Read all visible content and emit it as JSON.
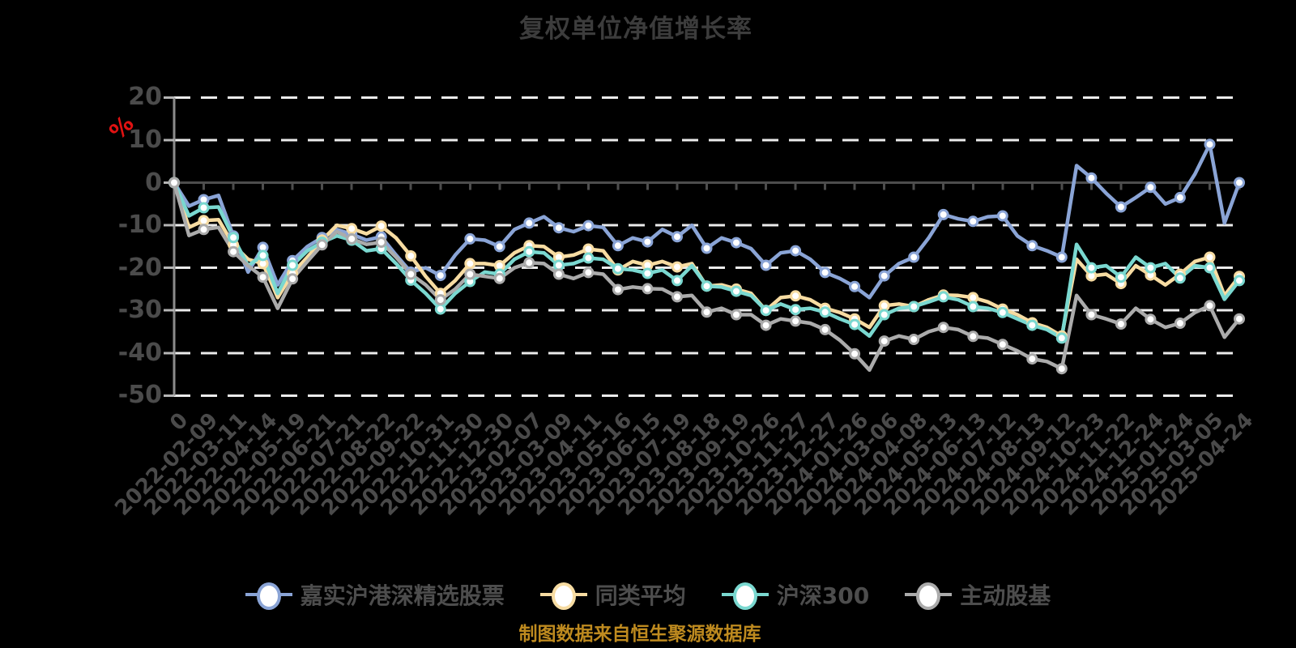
{
  "page": {
    "background": "#000000"
  },
  "chart_data": {
    "type": "line",
    "title": "复权单位净值增长率",
    "ylabel": "%",
    "source_note": "制图数据来自恒生聚源数据库",
    "ylim": [
      -50,
      20
    ],
    "yticks": [
      20,
      10,
      0,
      -10,
      -20,
      -30,
      -40,
      -50
    ],
    "grid": "horizontal-dashed",
    "legend_position": "bottom",
    "x_resolution": "values sampled at each category and at midpoints between categories",
    "categories": [
      "0",
      "2022-02-09",
      "2022-03-11",
      "2022-04-14",
      "2022-05-19",
      "2022-06-21",
      "2022-07-21",
      "2022-08-22",
      "2022-09-22",
      "2022-10-31",
      "2022-11-30",
      "2022-12-30",
      "2023-02-07",
      "2023-03-09",
      "2023-04-11",
      "2023-05-16",
      "2023-06-15",
      "2023-07-19",
      "2023-08-18",
      "2023-09-19",
      "2023-10-26",
      "2023-11-27",
      "2023-12-27",
      "2024-01-26",
      "2024-03-06",
      "2024-04-08",
      "2024-05-13",
      "2024-06-13",
      "2024-07-12",
      "2024-08-13",
      "2024-09-12",
      "2024-10-23",
      "2024-11-22",
      "2024-12-24",
      "2025-01-24",
      "2025-03-05",
      "2025-04-24"
    ],
    "series": [
      {
        "name": "嘉实沪港深精选股票",
        "color": "#8aa4d6",
        "values": [
          0,
          -5.5,
          -4.0,
          -3.0,
          -12.5,
          -21.0,
          -15.2,
          -24.0,
          -18.3,
          -15.0,
          -12.9,
          -11.0,
          -12.1,
          -13.5,
          -12.7,
          -17.0,
          -21.0,
          -20.0,
          -21.8,
          -17.0,
          -13.2,
          -13.5,
          -15.0,
          -11.0,
          -9.5,
          -8.0,
          -10.6,
          -11.5,
          -10.1,
          -10.5,
          -14.8,
          -13.0,
          -13.9,
          -11.0,
          -12.7,
          -10.0,
          -15.4,
          -13.0,
          -14.1,
          -15.5,
          -19.4,
          -16.5,
          -16.0,
          -18.0,
          -21.1,
          -22.5,
          -24.4,
          -27.0,
          -21.9,
          -19.0,
          -17.5,
          -13.0,
          -7.5,
          -8.5,
          -9.1,
          -8.0,
          -7.8,
          -12.5,
          -14.8,
          -16.0,
          -17.5,
          4.0,
          1.1,
          -2.5,
          -5.7,
          -3.5,
          -1.1,
          -5.0,
          -3.5,
          2.0,
          9.0,
          -9.5,
          0.0
        ]
      },
      {
        "name": "同类平均",
        "color": "#f7dca2",
        "values": [
          0,
          -10.5,
          -8.9,
          -8.7,
          -14.6,
          -18.0,
          -19.0,
          -27.0,
          -21.3,
          -17.5,
          -13.5,
          -10.0,
          -10.8,
          -12.0,
          -10.2,
          -13.0,
          -17.2,
          -22.0,
          -26.0,
          -23.0,
          -19.0,
          -19.0,
          -19.5,
          -16.5,
          -14.8,
          -15.0,
          -17.5,
          -17.0,
          -15.6,
          -16.0,
          -20.5,
          -18.5,
          -19.4,
          -18.5,
          -19.8,
          -19.0,
          -24.3,
          -24.0,
          -25.0,
          -26.0,
          -30.0,
          -27.0,
          -26.6,
          -27.5,
          -29.5,
          -30.5,
          -32.0,
          -34.0,
          -28.9,
          -28.5,
          -29.1,
          -27.5,
          -26.4,
          -26.5,
          -27.0,
          -28.0,
          -29.7,
          -31.0,
          -32.9,
          -34.0,
          -36.0,
          -18.0,
          -21.9,
          -21.5,
          -23.7,
          -19.5,
          -21.7,
          -24.0,
          -21.5,
          -18.5,
          -17.5,
          -26.5,
          -22.0
        ]
      },
      {
        "name": "沪深300",
        "color": "#7ad8d0",
        "values": [
          0,
          -7.8,
          -5.9,
          -5.7,
          -12.9,
          -19.5,
          -17.1,
          -26.0,
          -19.4,
          -16.0,
          -14.0,
          -12.5,
          -13.5,
          -16.0,
          -15.5,
          -19.0,
          -22.9,
          -26.0,
          -29.7,
          -26.0,
          -23.2,
          -21.0,
          -21.5,
          -18.0,
          -16.2,
          -16.5,
          -19.4,
          -19.0,
          -17.7,
          -18.0,
          -20.2,
          -20.5,
          -21.3,
          -20.5,
          -23.0,
          -19.5,
          -24.3,
          -24.5,
          -25.5,
          -26.5,
          -30.0,
          -28.5,
          -29.8,
          -29.5,
          -30.4,
          -32.0,
          -33.3,
          -36.0,
          -31.0,
          -29.5,
          -29.1,
          -28.0,
          -26.8,
          -27.5,
          -29.1,
          -29.5,
          -30.5,
          -32.0,
          -33.5,
          -34.5,
          -36.5,
          -14.5,
          -20.0,
          -19.5,
          -22.2,
          -17.5,
          -20.0,
          -19.0,
          -22.4,
          -19.5,
          -20.0,
          -27.4,
          -23.0
        ]
      },
      {
        "name": "主动股基",
        "color": "#ababab",
        "values": [
          0,
          -12.4,
          -11.0,
          -10.5,
          -16.2,
          -19.5,
          -22.2,
          -29.5,
          -22.6,
          -18.5,
          -14.6,
          -11.5,
          -13.2,
          -14.5,
          -14.0,
          -17.5,
          -21.5,
          -24.0,
          -27.5,
          -25.0,
          -21.5,
          -22.0,
          -22.5,
          -20.0,
          -18.8,
          -19.0,
          -21.5,
          -22.5,
          -21.1,
          -21.5,
          -25.1,
          -24.5,
          -24.9,
          -25.0,
          -26.8,
          -26.5,
          -30.4,
          -29.5,
          -31.0,
          -31.0,
          -33.5,
          -32.0,
          -32.5,
          -33.0,
          -34.5,
          -37.0,
          -40.2,
          -44.0,
          -37.2,
          -36.0,
          -36.8,
          -35.0,
          -34.0,
          -34.5,
          -36.1,
          -36.5,
          -38.0,
          -39.5,
          -41.4,
          -42.0,
          -43.7,
          -26.5,
          -31.0,
          -32.0,
          -33.2,
          -29.5,
          -32.1,
          -34.0,
          -33.0,
          -30.5,
          -28.9,
          -36.3,
          -32.0
        ]
      }
    ],
    "style": {
      "background": "#000000",
      "grid_color": "#ebebeb",
      "zero_axis_color": "#4d4d4d",
      "y_axis_color": "#8c8c8c",
      "y_tick_color": "#b5b5b5",
      "axis_label_color": "#4a4a4a",
      "title_color": "#3c3c3c",
      "legend_text_color": "#4d4d4d",
      "source_color": "#be8a1f",
      "pct_color": "#e01212"
    }
  }
}
